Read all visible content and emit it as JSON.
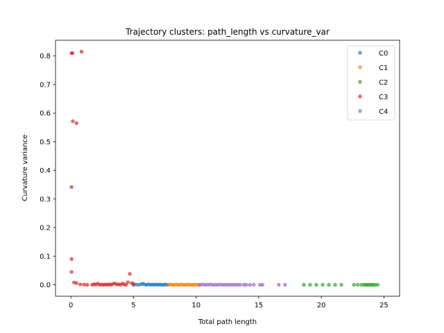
{
  "chart_data": {
    "type": "scatter",
    "title": "Trajectory clusters: path_length vs curvature_var",
    "xlabel": "Total path length",
    "ylabel": "Curvature variance",
    "xlim": [
      -1.23,
      26.25
    ],
    "ylim": [
      -0.04,
      0.855
    ],
    "xticks": [
      0,
      5,
      10,
      15,
      20,
      25
    ],
    "yticks": [
      0.0,
      0.1,
      0.2,
      0.3,
      0.4,
      0.5,
      0.6,
      0.7,
      0.8
    ],
    "xtick_labels": [
      "0",
      "5",
      "10",
      "15",
      "20",
      "25"
    ],
    "ytick_labels": [
      "0.0",
      "0.1",
      "0.2",
      "0.3",
      "0.4",
      "0.5",
      "0.6",
      "0.7",
      "0.8"
    ],
    "grid": false,
    "legend_position": "top-right",
    "series": [
      {
        "name": "C0",
        "color": "#1f77b4",
        "points": [
          [
            5.0,
            0.0
          ],
          [
            5.2,
            0.001
          ],
          [
            5.4,
            0.0
          ],
          [
            5.6,
            0.002
          ],
          [
            5.75,
            0.004
          ],
          [
            5.9,
            0.001
          ],
          [
            6.05,
            0.0
          ],
          [
            6.2,
            0.002
          ],
          [
            6.35,
            0.0
          ],
          [
            6.5,
            0.001
          ],
          [
            6.65,
            0.0
          ],
          [
            6.8,
            0.001
          ],
          [
            6.95,
            0.0
          ],
          [
            7.1,
            0.001
          ],
          [
            7.25,
            0.0
          ],
          [
            7.4,
            0.0
          ],
          [
            7.55,
            0.001
          ],
          [
            7.7,
            0.0
          ]
        ]
      },
      {
        "name": "C1",
        "color": "#ff7f0e",
        "points": [
          [
            7.8,
            0.0
          ],
          [
            7.95,
            0.001
          ],
          [
            8.1,
            0.0
          ],
          [
            8.25,
            0.0
          ],
          [
            8.4,
            0.001
          ],
          [
            8.55,
            0.0
          ],
          [
            8.7,
            0.0
          ],
          [
            8.85,
            0.001
          ],
          [
            9.0,
            0.0
          ],
          [
            9.15,
            0.0
          ],
          [
            9.3,
            0.001
          ],
          [
            9.45,
            0.0
          ],
          [
            9.6,
            0.0
          ],
          [
            9.75,
            0.0
          ],
          [
            9.9,
            0.001
          ],
          [
            10.05,
            0.0
          ],
          [
            10.2,
            0.0
          ]
        ]
      },
      {
        "name": "C2",
        "color": "#2ca02c",
        "points": [
          [
            18.6,
            0.0
          ],
          [
            19.1,
            0.0
          ],
          [
            19.6,
            0.0
          ],
          [
            20.1,
            0.0
          ],
          [
            20.6,
            0.0
          ],
          [
            21.1,
            0.0
          ],
          [
            21.6,
            0.0
          ],
          [
            22.6,
            0.0
          ],
          [
            22.9,
            0.0
          ],
          [
            23.2,
            0.0
          ],
          [
            23.4,
            0.0
          ],
          [
            23.55,
            0.0
          ],
          [
            23.7,
            0.0
          ],
          [
            23.85,
            0.0
          ],
          [
            24.0,
            0.0
          ],
          [
            24.15,
            0.0
          ],
          [
            24.3,
            0.0
          ],
          [
            24.5,
            0.0
          ]
        ]
      },
      {
        "name": "C3",
        "color": "#d62728",
        "points": [
          [
            0.05,
            0.81
          ],
          [
            0.12,
            0.81
          ],
          [
            0.85,
            0.815
          ],
          [
            0.15,
            0.572
          ],
          [
            0.45,
            0.565
          ],
          [
            0.05,
            0.342
          ],
          [
            0.05,
            0.09
          ],
          [
            0.05,
            0.045
          ],
          [
            0.25,
            0.008
          ],
          [
            0.45,
            0.006
          ],
          [
            0.75,
            0.001
          ],
          [
            1.05,
            0.001
          ],
          [
            1.3,
            0.0
          ],
          [
            1.7,
            0.0
          ],
          [
            1.85,
            0.002
          ],
          [
            2.0,
            0.001
          ],
          [
            2.15,
            0.004
          ],
          [
            2.3,
            0.0
          ],
          [
            2.45,
            0.001
          ],
          [
            2.6,
            0.0
          ],
          [
            2.75,
            0.001
          ],
          [
            2.9,
            0.0
          ],
          [
            3.05,
            0.002
          ],
          [
            3.2,
            0.0
          ],
          [
            3.35,
            0.003
          ],
          [
            3.5,
            0.005
          ],
          [
            3.65,
            0.001
          ],
          [
            3.8,
            0.002
          ],
          [
            3.95,
            0.0
          ],
          [
            4.1,
            0.004
          ],
          [
            4.25,
            0.002
          ],
          [
            4.4,
            0.0
          ],
          [
            4.55,
            0.009
          ],
          [
            4.7,
            0.038
          ],
          [
            4.85,
            0.006
          ],
          [
            5.0,
            0.003
          ]
        ]
      },
      {
        "name": "C4",
        "color": "#9467bd",
        "points": [
          [
            10.3,
            0.0
          ],
          [
            10.5,
            0.001
          ],
          [
            10.7,
            0.0
          ],
          [
            10.9,
            0.0
          ],
          [
            11.1,
            0.001
          ],
          [
            11.3,
            0.0
          ],
          [
            11.5,
            0.0
          ],
          [
            11.7,
            0.0
          ],
          [
            11.9,
            0.001
          ],
          [
            12.1,
            0.0
          ],
          [
            12.3,
            0.0
          ],
          [
            12.5,
            0.0
          ],
          [
            12.7,
            0.0
          ],
          [
            12.9,
            0.0
          ],
          [
            13.1,
            0.0
          ],
          [
            13.3,
            0.0
          ],
          [
            13.5,
            0.0
          ],
          [
            13.8,
            0.0
          ],
          [
            14.0,
            0.0
          ],
          [
            14.3,
            0.0
          ],
          [
            14.6,
            0.0
          ],
          [
            15.1,
            0.0
          ],
          [
            15.3,
            0.0
          ],
          [
            16.6,
            0.0
          ],
          [
            17.1,
            0.0
          ]
        ]
      }
    ]
  }
}
